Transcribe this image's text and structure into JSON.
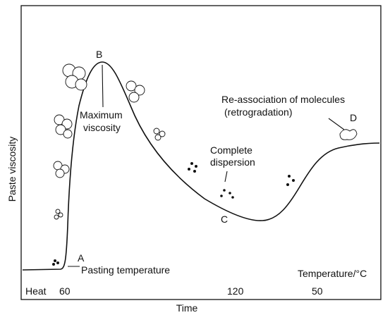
{
  "axes": {
    "y_label": "Paste viscosity",
    "x_label": "Time"
  },
  "bottom_row": {
    "heat": "Heat",
    "t1": "60",
    "t2": "120",
    "t3": "50",
    "temperature_label": "Temperature/°C"
  },
  "points": [
    {
      "letter": "A",
      "lines": [
        "Pasting temperature"
      ]
    },
    {
      "letter": "B",
      "lines": [
        "Maximum",
        "viscosity"
      ]
    },
    {
      "letter": "C",
      "lines": [
        "Complete",
        "dispersion"
      ]
    },
    {
      "letter": "D",
      "lines": [
        "Re-association of molecules",
        "(retrogradation)"
      ]
    }
  ]
}
